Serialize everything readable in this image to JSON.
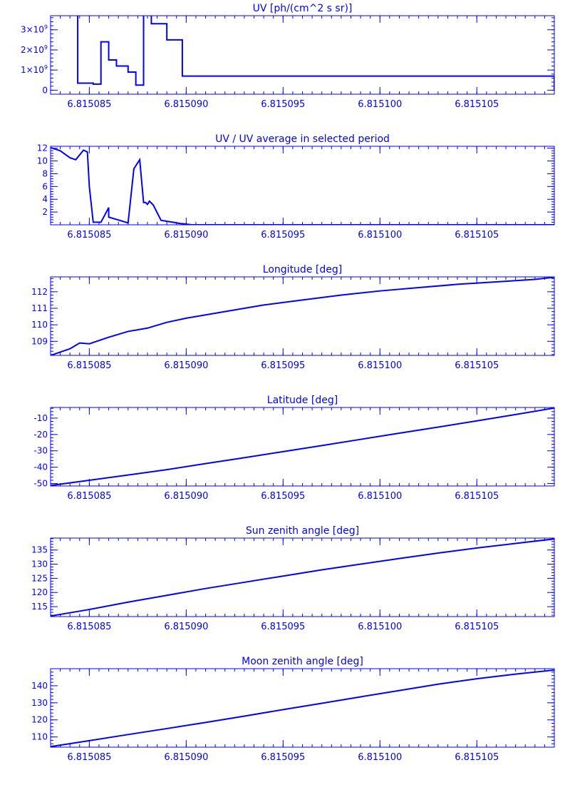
{
  "figure": {
    "color": "#0000ff",
    "background": "#ffffff"
  },
  "chart_data": [
    {
      "type": "line",
      "step": true,
      "title": "UV [ph/(cm^2 s sr)]",
      "xlabel": "",
      "ylabel": "",
      "xlim": [
        6.815083,
        6.815109
      ],
      "ylim": [
        -200000000,
        3700000000
      ],
      "xticks": [
        6.815085,
        6.81509,
        6.815095,
        6.8151,
        6.815105
      ],
      "xtick_labels": [
        "6.815085",
        "6.815090",
        "6.815095",
        "6.815100",
        "6.815105"
      ],
      "yticks": [
        0,
        1000000000,
        2000000000,
        3000000000
      ],
      "ytick_labels": [
        {
          "mantissa": "0",
          "exp": ""
        },
        {
          "mantissa": "1×10",
          "exp": "9"
        },
        {
          "mantissa": "2×10",
          "exp": "9"
        },
        {
          "mantissa": "3×10",
          "exp": "9"
        }
      ],
      "series": [
        {
          "x": [
            6.815084,
            6.8150844,
            6.8150852,
            6.8150856,
            6.815086,
            6.8150864,
            6.815087,
            6.8150874,
            6.8150878,
            6.8150882,
            6.815089,
            6.8150898,
            6.815109
          ],
          "y": [
            5000000000,
            350000000,
            300000000,
            2400000000,
            1500000000,
            1200000000,
            900000000,
            250000000,
            5000000000,
            3300000000,
            2500000000,
            700000000,
            0
          ]
        }
      ]
    },
    {
      "type": "line",
      "title": "UV / UV average in selected period",
      "xlabel": "",
      "ylabel": "",
      "xlim": [
        6.815083,
        6.815109
      ],
      "ylim": [
        0,
        12.3
      ],
      "xticks": [
        6.815085,
        6.81509,
        6.815095,
        6.8151,
        6.815105
      ],
      "xtick_labels": [
        "6.815085",
        "6.815090",
        "6.815095",
        "6.815100",
        "6.815105"
      ],
      "yticks": [
        2,
        4,
        6,
        8,
        10,
        12
      ],
      "ytick_labels": [
        "2",
        "4",
        "6",
        "8",
        "10",
        "12"
      ],
      "series": [
        {
          "x": [
            6.815083,
            6.8150835,
            6.815084,
            6.8150843,
            6.8150847,
            6.8150849,
            6.815085,
            6.8150852,
            6.8150856,
            6.815086,
            6.815086,
            6.815087,
            6.8150873,
            6.8150876,
            6.8150878,
            6.8150879,
            6.815088,
            6.8150881,
            6.8150883,
            6.8150887,
            6.8150893,
            6.8150897,
            6.8150903,
            6.815109
          ],
          "y": [
            12.1,
            11.6,
            10.5,
            10.2,
            11.7,
            11.4,
            6.0,
            0.4,
            0.4,
            2.7,
            1.2,
            0.3,
            8.8,
            10.2,
            3.5,
            3.5,
            3.2,
            3.7,
            3.1,
            0.7,
            0.4,
            0.2,
            0,
            0
          ]
        }
      ]
    },
    {
      "type": "line",
      "title": "Longitude [deg]",
      "xlabel": "",
      "ylabel": "",
      "xlim": [
        6.815083,
        6.815109
      ],
      "ylim": [
        108.15,
        112.9
      ],
      "xticks": [
        6.815085,
        6.81509,
        6.815095,
        6.8151,
        6.815105
      ],
      "xtick_labels": [
        "6.815085",
        "6.815090",
        "6.815095",
        "6.815100",
        "6.815105"
      ],
      "yticks": [
        109,
        110,
        111,
        112
      ],
      "ytick_labels": [
        "109",
        "110",
        "111",
        "112"
      ],
      "series": [
        {
          "x": [
            6.815083,
            6.815084,
            6.8150845,
            6.815085,
            6.815086,
            6.815087,
            6.815088,
            6.815089,
            6.81509,
            6.815092,
            6.815094,
            6.815096,
            6.815098,
            6.8151,
            6.815102,
            6.815104,
            6.815106,
            6.815108,
            6.815109
          ],
          "y": [
            108.15,
            108.55,
            108.9,
            108.85,
            109.25,
            109.6,
            109.8,
            110.15,
            110.4,
            110.8,
            111.2,
            111.5,
            111.8,
            112.05,
            112.25,
            112.45,
            112.6,
            112.75,
            112.88
          ]
        }
      ]
    },
    {
      "type": "line",
      "title": "Latitude [deg]",
      "xlabel": "",
      "ylabel": "",
      "xlim": [
        6.815083,
        6.815109
      ],
      "ylim": [
        -51.5,
        -3.5
      ],
      "xticks": [
        6.815085,
        6.81509,
        6.815095,
        6.8151,
        6.815105
      ],
      "xtick_labels": [
        "6.815085",
        "6.815090",
        "6.815095",
        "6.815100",
        "6.815105"
      ],
      "yticks": [
        -50,
        -40,
        -30,
        -20,
        -10
      ],
      "ytick_labels": [
        "-50",
        "-40",
        "-30",
        "-20",
        "-10"
      ],
      "series": [
        {
          "x": [
            6.815083,
            6.815085,
            6.815087,
            6.815089,
            6.815091,
            6.815093,
            6.815095,
            6.815097,
            6.815099,
            6.815101,
            6.815103,
            6.815105,
            6.815107,
            6.815109
          ],
          "y": [
            -51.2,
            -48.0,
            -44.8,
            -41.5,
            -37.8,
            -34.2,
            -30.5,
            -26.8,
            -23.0,
            -19.2,
            -15.5,
            -11.7,
            -7.8,
            -3.8
          ]
        }
      ]
    },
    {
      "type": "line",
      "title": "Sun zenith angle [deg]",
      "xlabel": "",
      "ylabel": "",
      "xlim": [
        6.815083,
        6.815109
      ],
      "ylim": [
        111.5,
        139.2
      ],
      "xticks": [
        6.815085,
        6.81509,
        6.815095,
        6.8151,
        6.815105
      ],
      "xtick_labels": [
        "6.815085",
        "6.815090",
        "6.815095",
        "6.815100",
        "6.815105"
      ],
      "yticks": [
        115,
        120,
        125,
        130,
        135
      ],
      "ytick_labels": [
        "115",
        "120",
        "125",
        "130",
        "135"
      ],
      "series": [
        {
          "x": [
            6.815083,
            6.815085,
            6.815087,
            6.815089,
            6.815091,
            6.815093,
            6.815095,
            6.815097,
            6.815099,
            6.815101,
            6.815103,
            6.815105,
            6.815107,
            6.815109
          ],
          "y": [
            111.7,
            114.0,
            116.6,
            119.0,
            121.4,
            123.6,
            125.8,
            128.0,
            130.0,
            132.0,
            133.9,
            135.7,
            137.3,
            138.9
          ]
        }
      ]
    },
    {
      "type": "line",
      "title": "Moon zenith angle [deg]",
      "xlabel": "",
      "ylabel": "",
      "xlim": [
        6.815083,
        6.815109
      ],
      "ylim": [
        104,
        150
      ],
      "xticks": [
        6.815085,
        6.81509,
        6.815095,
        6.8151,
        6.815105
      ],
      "xtick_labels": [
        "6.815085",
        "6.815090",
        "6.815095",
        "6.815100",
        "6.815105"
      ],
      "yticks": [
        110,
        120,
        130,
        140
      ],
      "ytick_labels": [
        "110",
        "120",
        "130",
        "140"
      ],
      "series": [
        {
          "x": [
            6.815083,
            6.815085,
            6.815087,
            6.815089,
            6.815091,
            6.815093,
            6.815095,
            6.815097,
            6.815099,
            6.815101,
            6.815103,
            6.815105,
            6.815107,
            6.815109
          ],
          "y": [
            104.3,
            107.8,
            111.4,
            114.9,
            118.5,
            122.2,
            126.0,
            129.7,
            133.5,
            137.2,
            140.9,
            144.1,
            146.8,
            149.2
          ]
        }
      ]
    }
  ]
}
